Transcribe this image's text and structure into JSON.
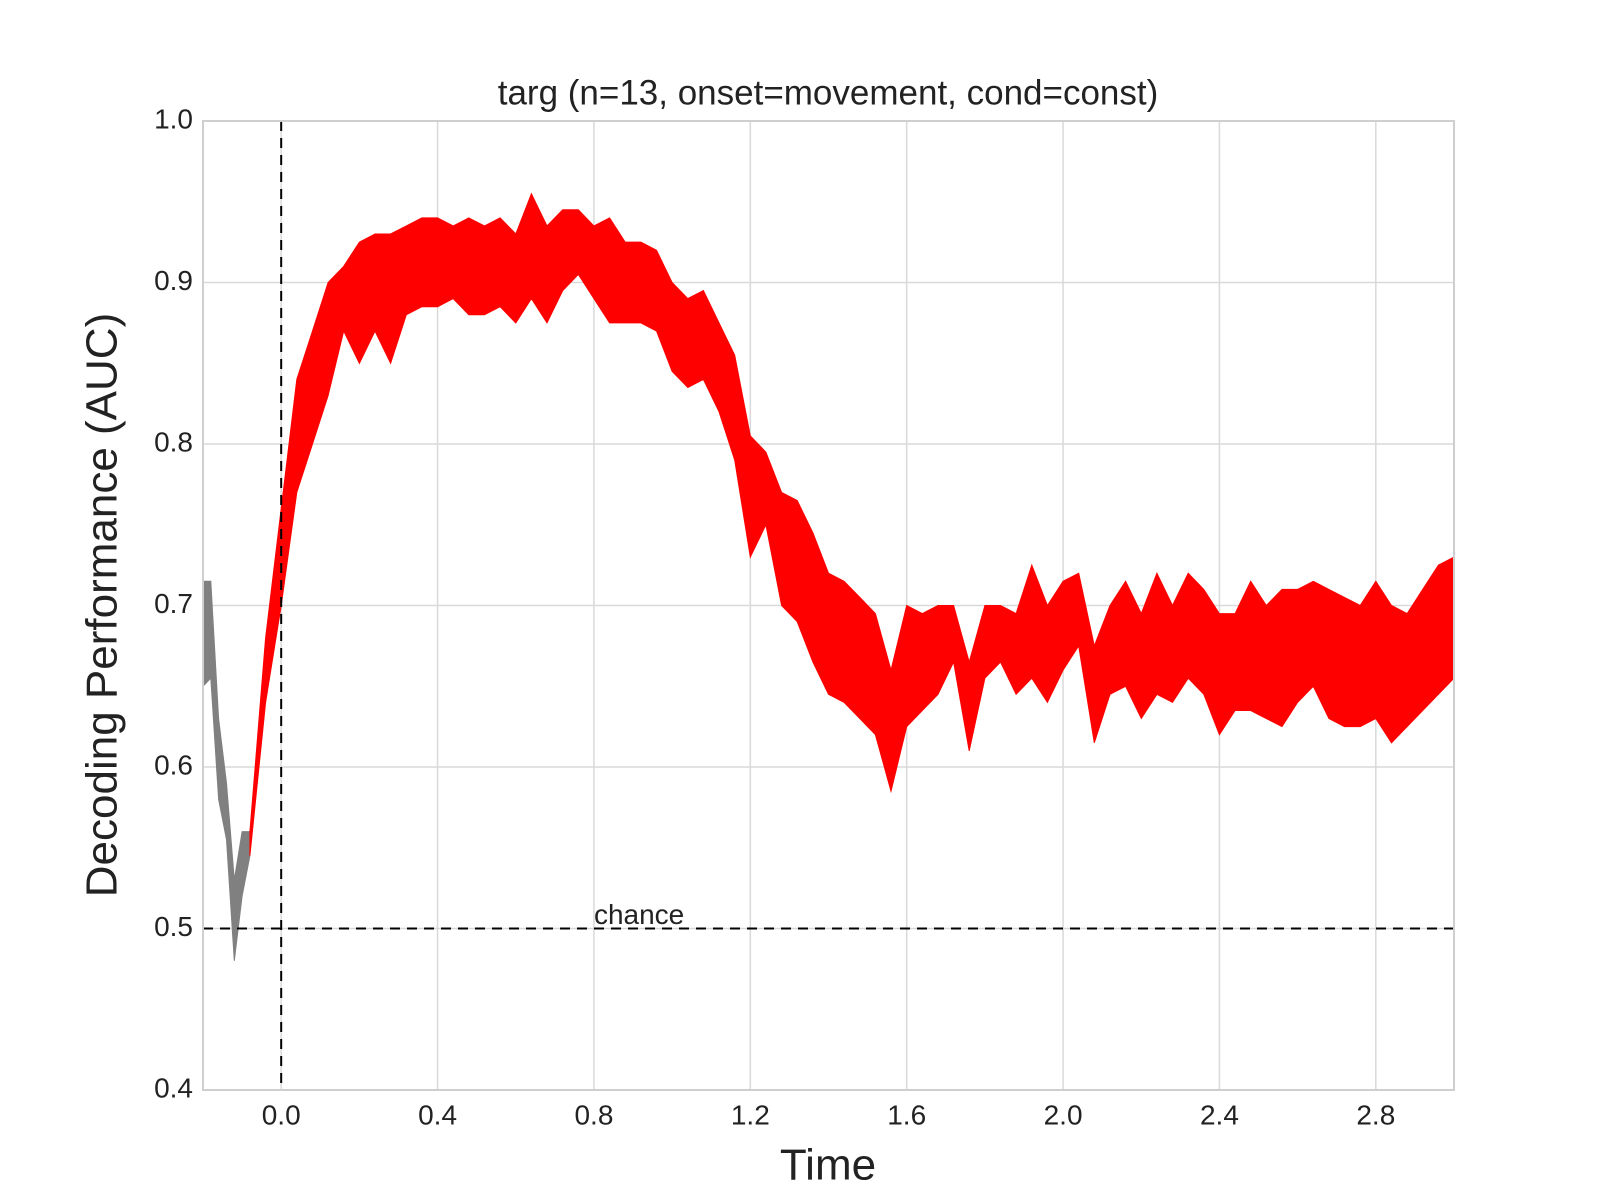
{
  "chart_data": {
    "type": "band",
    "title": "targ (n=13, onset=movement, cond=const)",
    "x_label": "Time",
    "y_label": "Decoding Performance (AUC)",
    "xlim": [
      -0.2,
      3.0
    ],
    "ylim": [
      0.4,
      1.0
    ],
    "xticks": [
      {
        "value": 0,
        "label": "0.0"
      },
      0.4,
      0.8,
      1.2,
      1.6,
      {
        "value": 2,
        "label": "2.0"
      },
      2.4,
      2.8
    ],
    "yticks": [
      0.4,
      0.5,
      0.6,
      0.7,
      0.8,
      0.9,
      {
        "value": 1,
        "label": "1.0"
      }
    ],
    "grid": true,
    "hline": 0.5,
    "vline": 0,
    "annotations": [
      {
        "text": "chance",
        "x": 0.8,
        "y": 0.5
      }
    ],
    "series": [
      {
        "color": "#808080",
        "x": [
          -0.2,
          -0.18,
          -0.16,
          -0.14,
          -0.12,
          -0.1,
          -0.08
        ],
        "lower": [
          0.65,
          0.655,
          0.58,
          0.555,
          0.48,
          0.52,
          0.545
        ],
        "upper": [
          0.715,
          0.715,
          0.63,
          0.59,
          0.53,
          0.56,
          0.56
        ]
      },
      {
        "color": "#ff0000",
        "x": [
          -0.08,
          -0.04,
          0.0,
          0.04,
          0.08,
          0.12,
          0.16,
          0.2,
          0.24,
          0.28,
          0.32,
          0.36,
          0.4,
          0.44,
          0.48,
          0.52,
          0.56,
          0.6,
          0.64,
          0.68,
          0.72,
          0.76,
          0.8,
          0.84,
          0.88,
          0.92,
          0.96,
          1.0,
          1.04,
          1.08,
          1.12,
          1.16,
          1.2,
          1.24,
          1.28,
          1.32,
          1.36,
          1.4,
          1.44,
          1.48,
          1.52,
          1.56,
          1.6,
          1.64,
          1.68,
          1.72,
          1.76,
          1.8,
          1.84,
          1.88,
          1.92,
          1.96,
          2.0,
          2.04,
          2.08,
          2.12,
          2.16,
          2.2,
          2.24,
          2.28,
          2.32,
          2.36,
          2.4,
          2.44,
          2.48,
          2.52,
          2.56,
          2.6,
          2.64,
          2.68,
          2.72,
          2.76,
          2.8,
          2.84,
          2.88,
          2.92,
          2.96,
          3.0
        ],
        "lower": [
          0.545,
          0.64,
          0.7,
          0.77,
          0.8,
          0.83,
          0.87,
          0.85,
          0.87,
          0.85,
          0.88,
          0.885,
          0.885,
          0.89,
          0.88,
          0.88,
          0.885,
          0.875,
          0.89,
          0.875,
          0.895,
          0.905,
          0.89,
          0.875,
          0.875,
          0.875,
          0.87,
          0.845,
          0.835,
          0.84,
          0.82,
          0.79,
          0.73,
          0.75,
          0.7,
          0.69,
          0.665,
          0.645,
          0.64,
          0.63,
          0.62,
          0.585,
          0.625,
          0.635,
          0.645,
          0.665,
          0.61,
          0.655,
          0.665,
          0.645,
          0.655,
          0.64,
          0.66,
          0.675,
          0.615,
          0.645,
          0.65,
          0.63,
          0.645,
          0.64,
          0.655,
          0.645,
          0.62,
          0.635,
          0.635,
          0.63,
          0.625,
          0.64,
          0.65,
          0.63,
          0.625,
          0.625,
          0.63,
          0.615,
          0.625,
          0.635,
          0.645,
          0.655
        ],
        "upper": [
          0.56,
          0.68,
          0.76,
          0.84,
          0.87,
          0.9,
          0.91,
          0.925,
          0.93,
          0.93,
          0.935,
          0.94,
          0.94,
          0.935,
          0.94,
          0.935,
          0.94,
          0.93,
          0.955,
          0.935,
          0.945,
          0.945,
          0.935,
          0.94,
          0.925,
          0.925,
          0.92,
          0.9,
          0.89,
          0.895,
          0.875,
          0.855,
          0.805,
          0.795,
          0.77,
          0.765,
          0.745,
          0.72,
          0.715,
          0.705,
          0.695,
          0.66,
          0.7,
          0.695,
          0.7,
          0.7,
          0.665,
          0.7,
          0.7,
          0.695,
          0.725,
          0.7,
          0.715,
          0.72,
          0.675,
          0.7,
          0.715,
          0.695,
          0.72,
          0.7,
          0.72,
          0.71,
          0.695,
          0.695,
          0.715,
          0.7,
          0.71,
          0.71,
          0.715,
          0.71,
          0.705,
          0.7,
          0.715,
          0.7,
          0.695,
          0.71,
          0.725,
          0.73
        ]
      }
    ]
  }
}
